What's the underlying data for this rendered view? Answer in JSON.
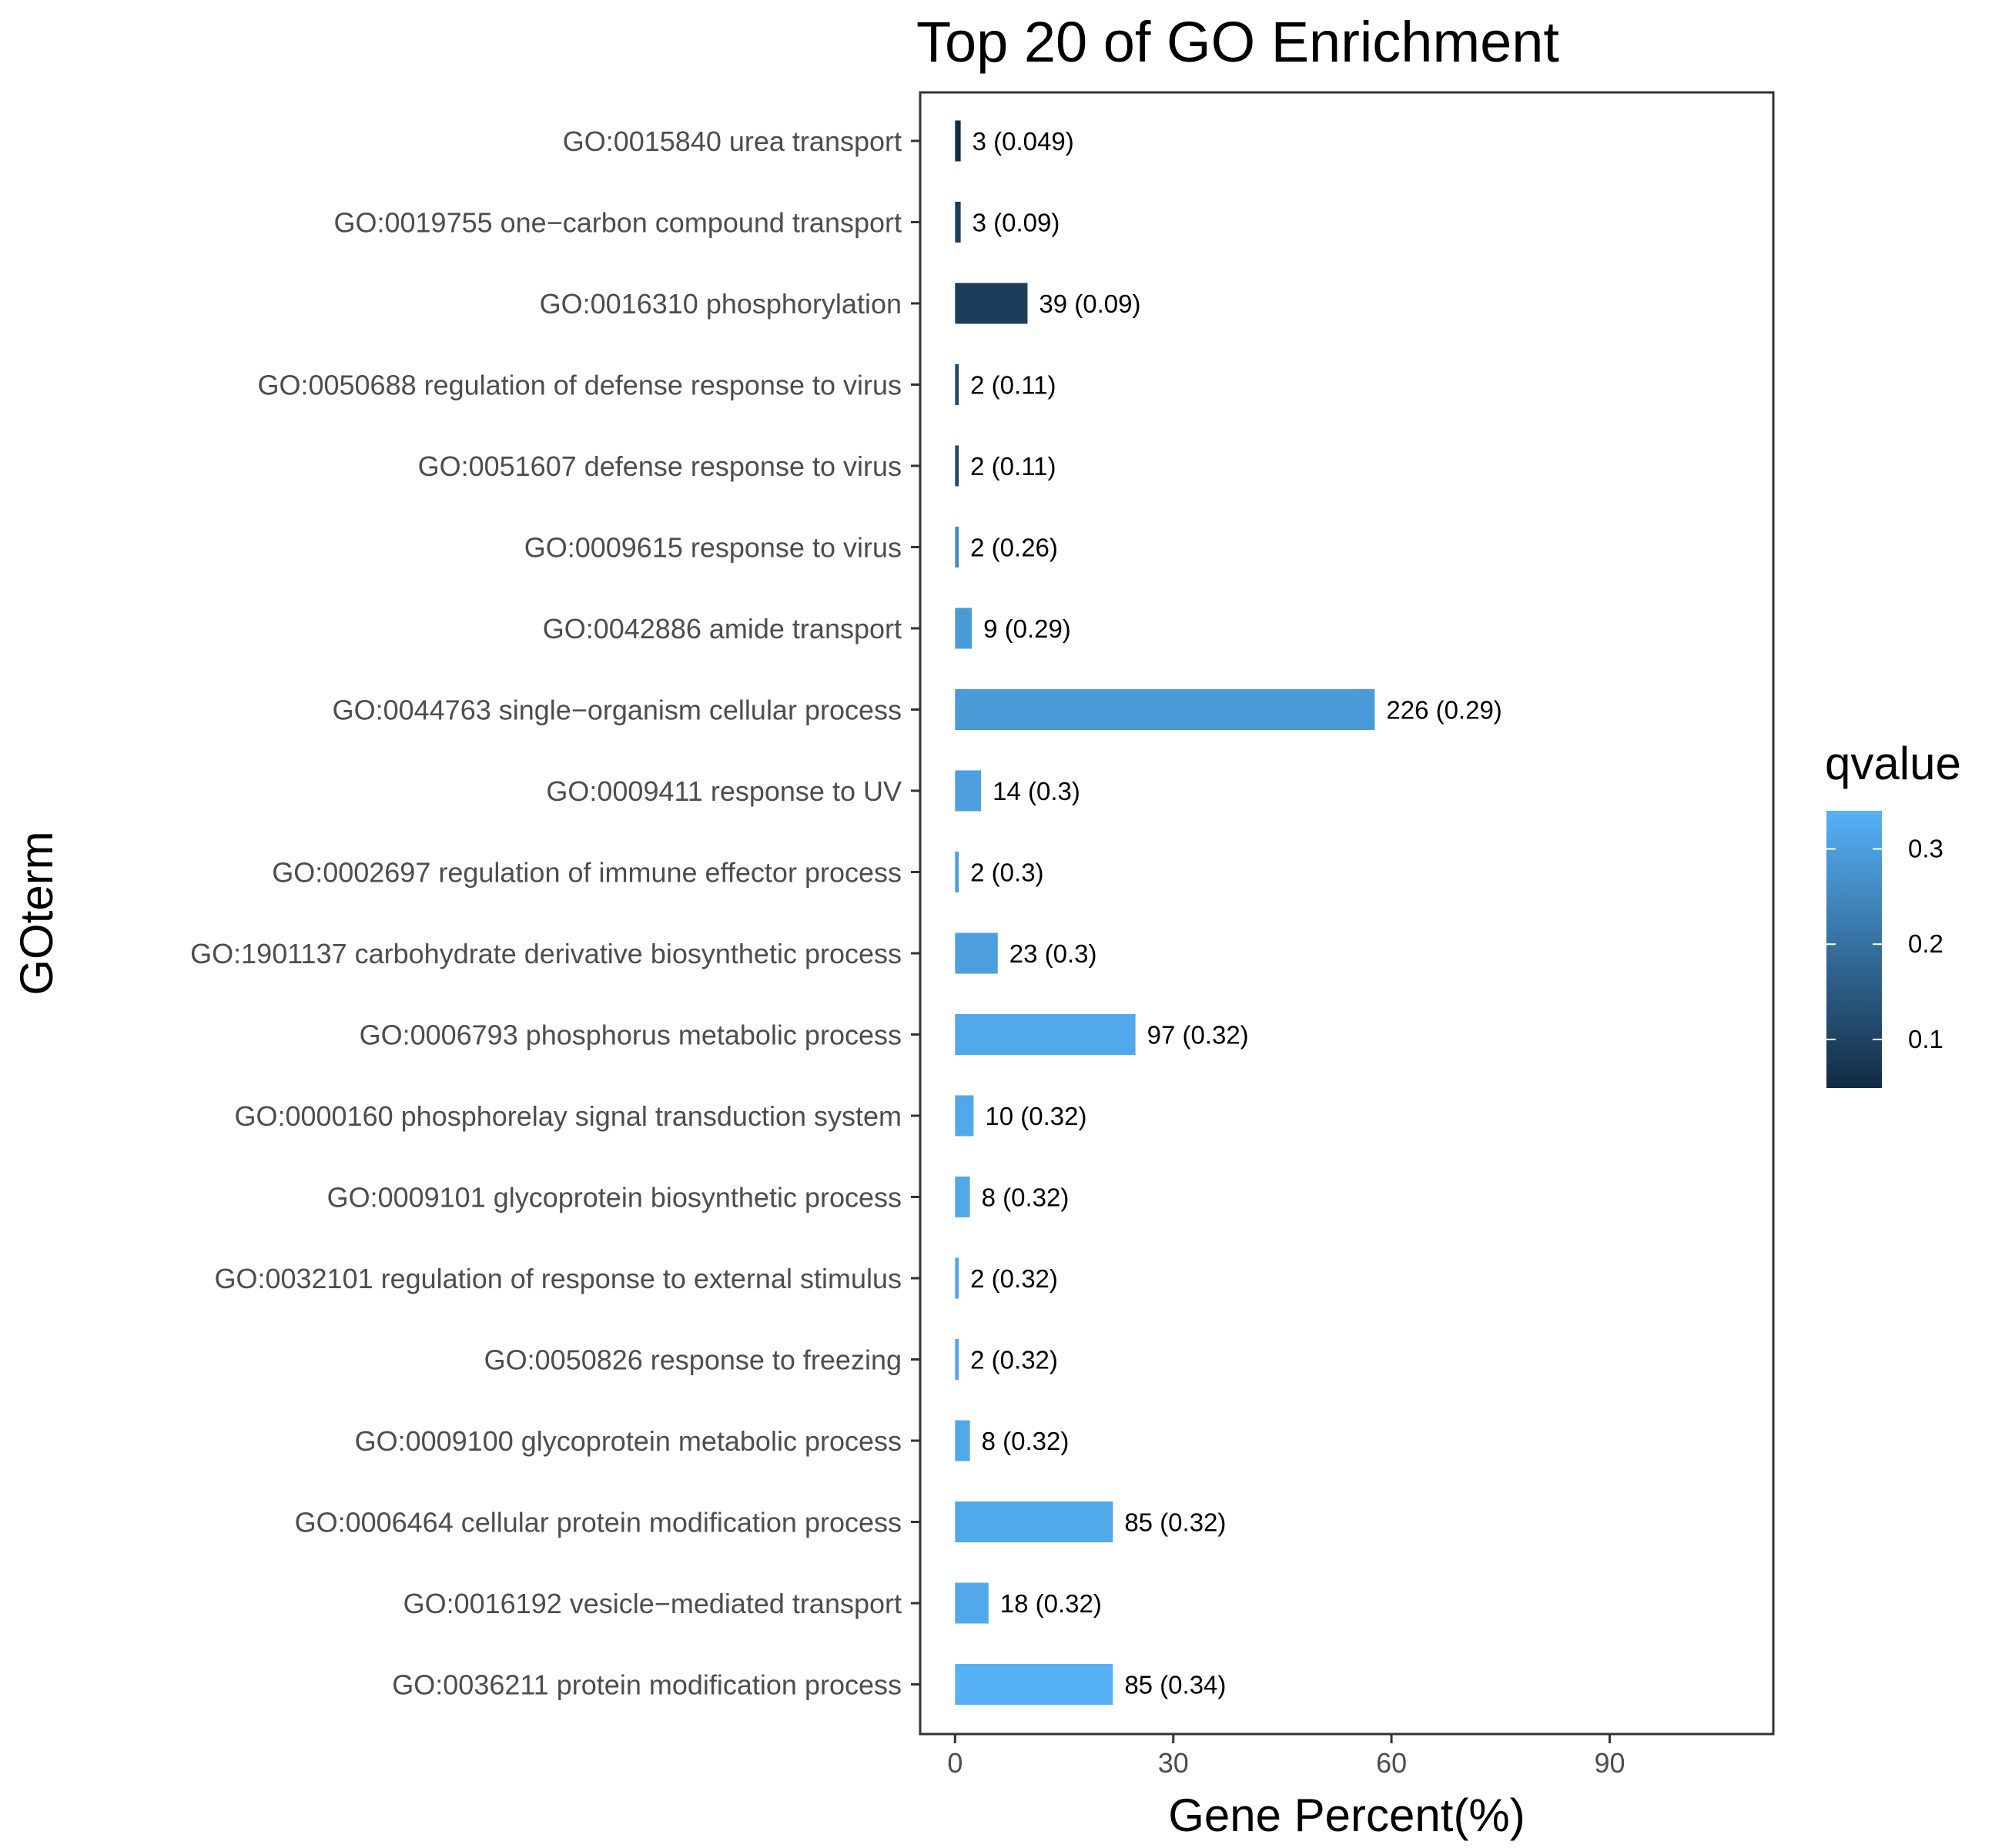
{
  "chart_data": {
    "type": "bar",
    "orientation": "horizontal",
    "title": "Top 20 of GO Enrichment",
    "xlabel": "Gene Percent(%)",
    "ylabel": "GOterm",
    "xlim": [
      -4.8,
      112.5
    ],
    "xticks": [
      0,
      30,
      60,
      90
    ],
    "grid": false,
    "legend": {
      "title": "qvalue",
      "placement": "right",
      "range": [
        0.049,
        0.34
      ],
      "ticks": [
        0.1,
        0.2,
        0.3
      ],
      "color_low": "#132B43",
      "color_high": "#56B1F7"
    },
    "categories": [
      "GO:0015840 urea transport",
      "GO:0019755 one−carbon compound transport",
      "GO:0016310 phosphorylation",
      "GO:0050688 regulation of defense response to virus",
      "GO:0051607 defense response to virus",
      "GO:0009615 response to virus",
      "GO:0042886 amide transport",
      "GO:0044763 single−organism cellular process",
      "GO:0009411 response to UV",
      "GO:0002697 regulation of immune effector process",
      "GO:1901137 carbohydrate derivative biosynthetic process",
      "GO:0006793 phosphorus metabolic process",
      "GO:0000160 phosphorelay signal transduction system",
      "GO:0009101 glycoprotein biosynthetic process",
      "GO:0032101 regulation of response to external stimulus",
      "GO:0050826 response to freezing",
      "GO:0009100 glycoprotein metabolic process",
      "GO:0006464 cellular protein modification process",
      "GO:0016192 vesicle−mediated transport",
      "GO:0036211 protein modification process"
    ],
    "values": [
      0.77,
      0.77,
      9.96,
      0.51,
      0.51,
      0.51,
      2.3,
      57.7,
      3.58,
      0.51,
      5.87,
      24.8,
      2.55,
      2.04,
      0.51,
      0.51,
      2.04,
      21.7,
      4.6,
      21.7
    ],
    "qvalues": [
      0.049,
      0.09,
      0.09,
      0.11,
      0.11,
      0.26,
      0.29,
      0.29,
      0.3,
      0.3,
      0.3,
      0.32,
      0.32,
      0.32,
      0.32,
      0.32,
      0.32,
      0.32,
      0.32,
      0.34
    ],
    "data_labels": [
      "3 (0.049)",
      "3 (0.09)",
      "39 (0.09)",
      "2 (0.11)",
      "2 (0.11)",
      "2 (0.26)",
      "9 (0.29)",
      "226 (0.29)",
      "14 (0.3)",
      "2 (0.3)",
      "23 (0.3)",
      "97 (0.32)",
      "10 (0.32)",
      "8 (0.32)",
      "2 (0.32)",
      "2 (0.32)",
      "8 (0.32)",
      "85 (0.32)",
      "18 (0.32)",
      "85 (0.34)"
    ]
  }
}
